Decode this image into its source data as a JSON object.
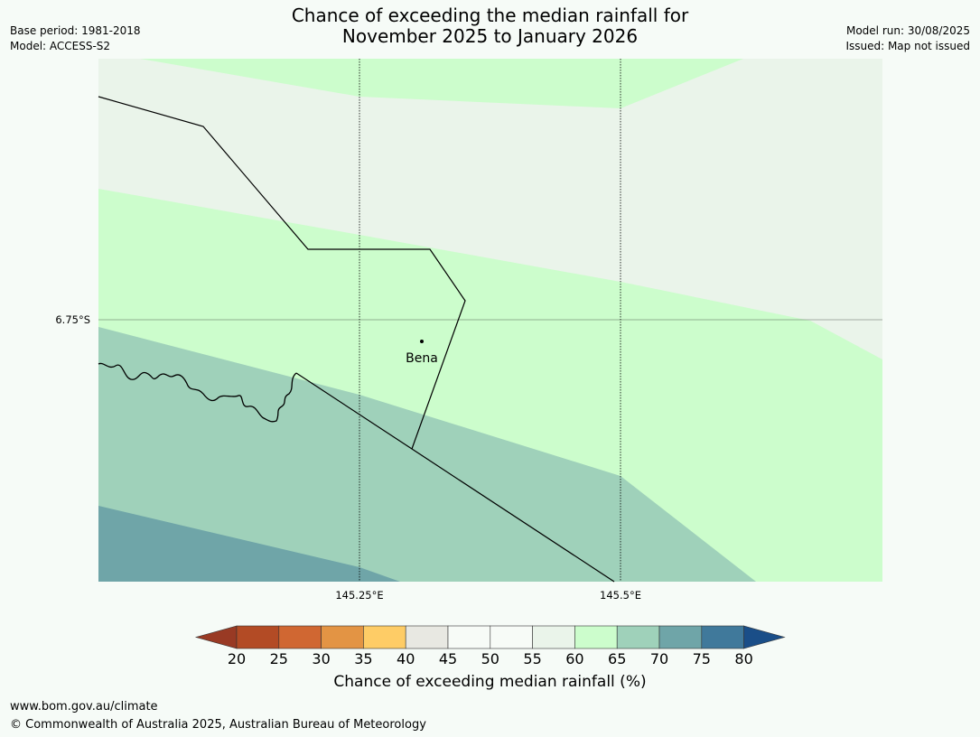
{
  "title": {
    "line1": "Chance of exceeding the median rainfall for",
    "line2": "November 2025 to January 2026"
  },
  "meta": {
    "base_period": "Base period: 1981-2018",
    "model": "Model: ACCESS-S2",
    "model_run": "Model run: 30/08/2025",
    "issued": "Issued: Map not issued"
  },
  "map": {
    "lat_label": "6.75°S",
    "lon_labels": [
      "145.25°E",
      "145.5°E"
    ],
    "place_name": "Bena",
    "region_colors": {
      "55-60": "#eaf4ea",
      "60-65": "#ccfdcc",
      "65-70": "#9fd1ba",
      "70-75": "#6fa5a8"
    }
  },
  "colorbar": {
    "title": "Chance of exceeding median rainfall (%)",
    "tick_labels": [
      "20",
      "25",
      "30",
      "35",
      "40",
      "45",
      "50",
      "55",
      "60",
      "65",
      "70",
      "75",
      "80"
    ],
    "colors": [
      "#993a24",
      "#b34b25",
      "#d06732",
      "#e39444",
      "#fecc66",
      "#e8e8e2",
      "#f7fbf7",
      "#f7fbf7",
      "#eaf4ea",
      "#ccfdcc",
      "#9fd1ba",
      "#6fa5a8",
      "#40799b",
      "#1a4e88"
    ]
  },
  "footer": {
    "url": "www.bom.gov.au/climate",
    "copyright": "© Commonwealth of Australia 2025, Australian Bureau of Meteorology"
  }
}
